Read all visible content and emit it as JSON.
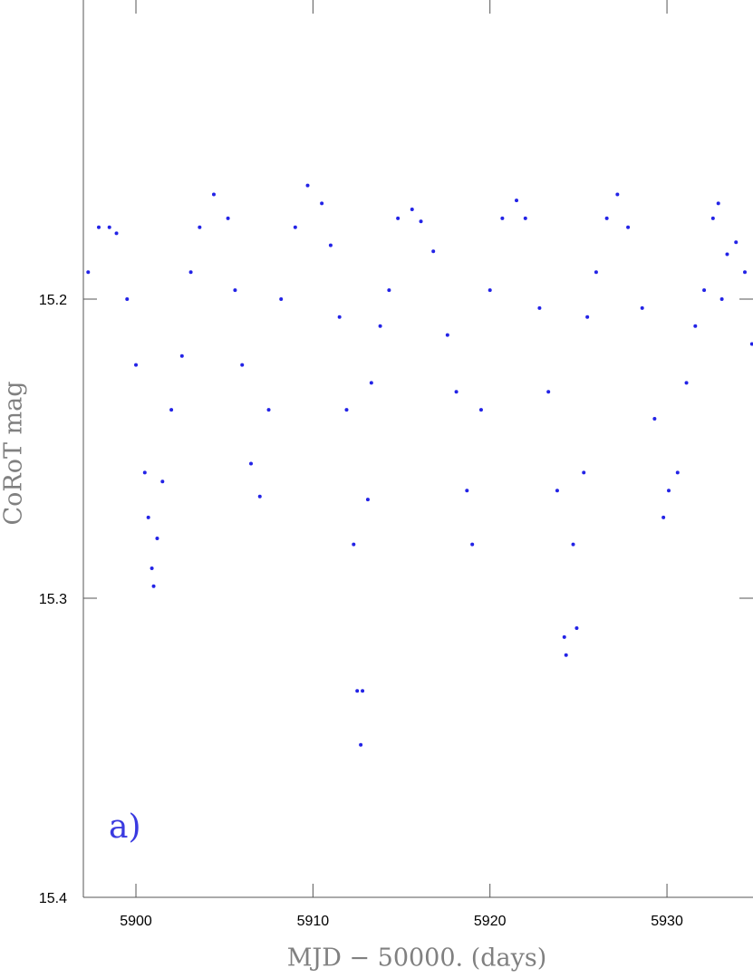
{
  "chart_data": {
    "type": "scatter",
    "xlabel": "MJD − 50000. (days)",
    "ylabel": "CoRoT mag",
    "annotation": "a)",
    "xlim": [
      5897.03,
      5934.86
    ],
    "ylim": [
      15.4,
      15.1
    ],
    "xticks": [
      5900,
      5910,
      5920,
      5930
    ],
    "yticks": [
      15.2,
      15.3,
      15.4
    ],
    "series": [
      {
        "color": "#2323e6",
        "x": [
          5897.3,
          5897.9,
          5898.5,
          5898.9,
          5899.5,
          5900.0,
          5900.5,
          5900.7,
          5900.9,
          5901.0,
          5901.2,
          5901.5,
          5902.0,
          5902.6,
          5903.1,
          5903.6,
          5904.4,
          5905.2,
          5905.6,
          5906.0,
          5906.5,
          5907.0,
          5907.5,
          5908.2,
          5909.0,
          5909.7,
          5910.5,
          5911.0,
          5911.5,
          5911.9,
          5912.3,
          5912.5,
          5912.7,
          5912.8,
          5913.1,
          5913.3,
          5913.8,
          5914.3,
          5914.8,
          5915.6,
          5916.1,
          5916.8,
          5917.6,
          5918.1,
          5918.7,
          5919.0,
          5919.5,
          5920.0,
          5920.7,
          5921.5,
          5922.0,
          5922.8,
          5923.3,
          5923.8,
          5924.2,
          5924.3,
          5924.7,
          5924.9,
          5925.3,
          5925.5,
          5926.0,
          5926.6,
          5927.2,
          5927.8,
          5928.6,
          5929.3,
          5929.8,
          5930.1,
          5930.6,
          5931.1,
          5931.6,
          5932.1,
          5932.6,
          5932.9,
          5933.1,
          5933.4,
          5933.9,
          5934.4,
          5934.8
        ],
        "values": [
          15.191,
          15.176,
          15.176,
          15.178,
          15.2,
          15.222,
          15.258,
          15.273,
          15.29,
          15.296,
          15.28,
          15.261,
          15.237,
          15.219,
          15.191,
          15.176,
          15.165,
          15.173,
          15.197,
          15.222,
          15.255,
          15.266,
          15.237,
          15.2,
          15.176,
          15.162,
          15.168,
          15.182,
          15.206,
          15.237,
          15.282,
          15.331,
          15.349,
          15.331,
          15.267,
          15.228,
          15.209,
          15.197,
          15.173,
          15.17,
          15.174,
          15.184,
          15.212,
          15.231,
          15.264,
          15.282,
          15.237,
          15.197,
          15.173,
          15.167,
          15.173,
          15.203,
          15.231,
          15.264,
          15.313,
          15.319,
          15.282,
          15.31,
          15.258,
          15.206,
          15.191,
          15.173,
          15.165,
          15.176,
          15.203,
          15.24,
          15.273,
          15.264,
          15.258,
          15.228,
          15.209,
          15.197,
          15.173,
          15.168,
          15.2,
          15.185,
          15.181,
          15.191,
          15.215
        ]
      }
    ]
  }
}
